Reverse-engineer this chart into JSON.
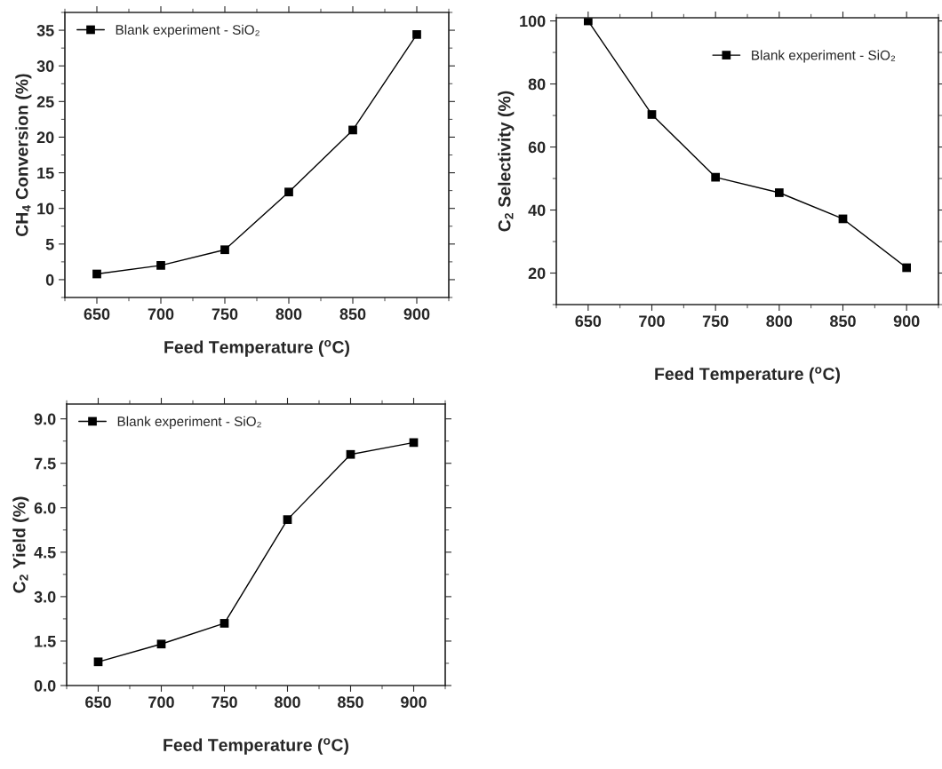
{
  "chart_data": [
    {
      "type": "line",
      "xlabel": "Feed Temperature ($^{o}$C)",
      "ylabel": "CH$_{4}$ Conversion (%)",
      "x": [
        650,
        700,
        750,
        800,
        850,
        900
      ],
      "series": [
        {
          "name": "Blank experiment - SiO₂",
          "color": "#000000",
          "values": [
            0.8,
            2.0,
            4.2,
            12.3,
            21.0,
            34.4
          ]
        }
      ],
      "xlim": [
        625,
        925
      ],
      "ylim": [
        -2.5,
        37.5
      ],
      "xticks": [
        650,
        700,
        750,
        800,
        850,
        900
      ],
      "yticks": [
        0,
        5,
        10,
        15,
        20,
        25,
        30,
        35
      ],
      "marker": "square",
      "legend": "top left"
    },
    {
      "type": "line",
      "xlabel": "Feed Temperature ($^{o}$C)",
      "ylabel": "C$_{2}$ Selectivity (%)",
      "x": [
        650,
        700,
        750,
        800,
        850,
        900
      ],
      "series": [
        {
          "name": "Blank experiment - SiO₂",
          "color": "#000000",
          "values": [
            100,
            70.3,
            50.4,
            45.5,
            37.2,
            21.7
          ]
        }
      ],
      "xlim": [
        625,
        925
      ],
      "ylim": [
        10,
        101
      ],
      "xticks": [
        650,
        700,
        750,
        800,
        850,
        900
      ],
      "yticks": [
        20,
        40,
        60,
        80,
        100
      ],
      "marker": "square",
      "legend": "top right"
    },
    {
      "type": "line",
      "xlabel": "Feed Temperature ($^{o}$C)",
      "ylabel": "C$_{2}$ Yield (%)",
      "x": [
        650,
        700,
        750,
        800,
        850,
        900
      ],
      "series": [
        {
          "name": "Blank experiment - SiO₂",
          "color": "#000000",
          "values": [
            0.8,
            1.4,
            2.1,
            5.6,
            7.8,
            8.2
          ]
        }
      ],
      "xlim": [
        625,
        925
      ],
      "ylim": [
        0,
        9.5
      ],
      "xticks": [
        650,
        700,
        750,
        800,
        850,
        900
      ],
      "yticks": [
        {
          "value": 0,
          "label": "0.0"
        },
        1.5,
        {
          "value": 3,
          "label": "3.0"
        },
        4.5,
        {
          "value": 6,
          "label": "6.0"
        },
        7.5,
        {
          "value": 9,
          "label": "9.0"
        }
      ],
      "marker": "square",
      "legend": "top left"
    }
  ]
}
